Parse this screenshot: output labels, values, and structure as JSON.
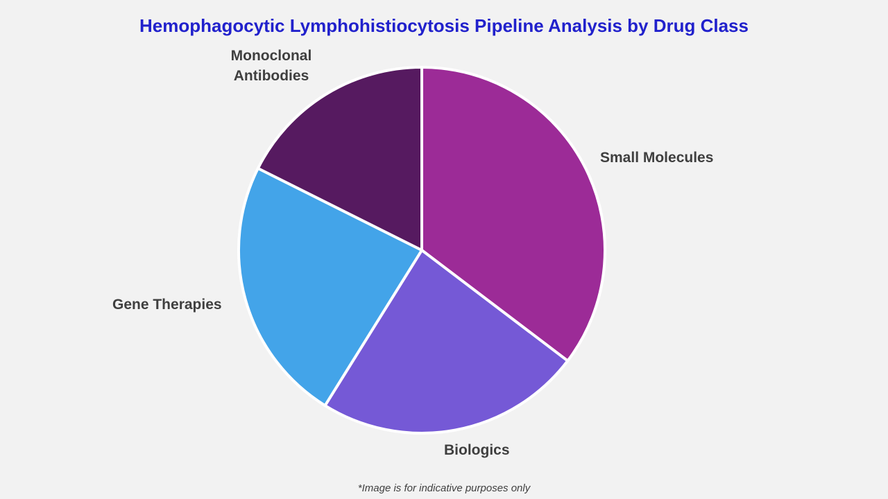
{
  "page": {
    "background_color": "#f2f2f2",
    "footnote": "*Image is for indicative purposes only"
  },
  "chart_data": {
    "type": "pie",
    "title": "Hemophagocytic Lymphohistiocytosis Pipeline Analysis by Drug Class",
    "title_color": "#2121cc",
    "label_color": "#3f3f3f",
    "footnote_color": "#3f3f3f",
    "separator_color": "#ffffff",
    "start_angle_deg": 0,
    "direction": "clockwise",
    "legend": "none",
    "labels_position": "outside",
    "slices": [
      {
        "label": "Small Molecules",
        "percent": 35.3,
        "color": "#9c2b97"
      },
      {
        "label": "Biologics",
        "percent": 23.5,
        "color": "#7559d6"
      },
      {
        "label": "Gene Therapies",
        "percent": 23.5,
        "color": "#43a4e9"
      },
      {
        "label": "Monoclonal Antibodies",
        "percent": 17.6,
        "color": "#561a60"
      }
    ]
  }
}
